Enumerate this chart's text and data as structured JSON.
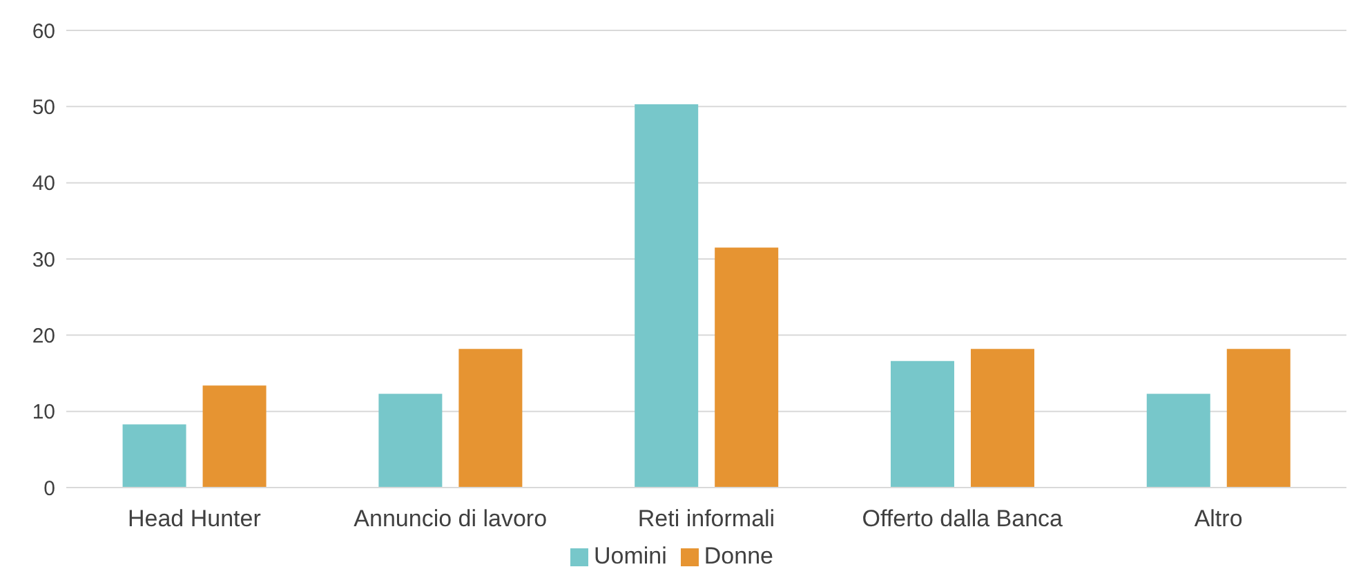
{
  "chart_data": {
    "type": "bar",
    "categories": [
      "Head Hunter",
      "Annuncio di lavoro",
      "Reti informali",
      "Offerto dalla Banca",
      "Altro"
    ],
    "series": [
      {
        "name": "Uomini",
        "color": "#77c7ca",
        "values": [
          8.3,
          12.3,
          50.3,
          16.6,
          12.3
        ]
      },
      {
        "name": "Donne",
        "color": "#e69432",
        "values": [
          13.4,
          18.2,
          31.5,
          18.2,
          18.2
        ]
      }
    ],
    "ylim": [
      0,
      60
    ],
    "yticks": [
      0,
      10,
      20,
      30,
      40,
      50,
      60
    ],
    "grid": "y",
    "legend": "bottom"
  }
}
